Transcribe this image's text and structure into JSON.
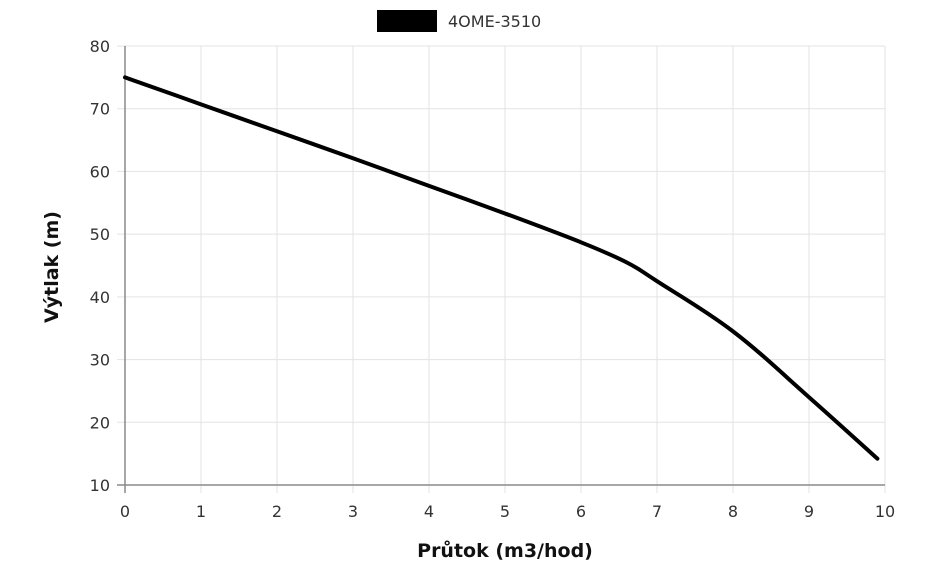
{
  "chart_data": {
    "type": "line",
    "xlabel": "Průtok (m3/hod)",
    "ylabel": "Výtlak (m)",
    "xlim": [
      0,
      10
    ],
    "ylim": [
      10,
      80
    ],
    "x_ticks": [
      0,
      1,
      2,
      3,
      4,
      5,
      6,
      7,
      8,
      9,
      10
    ],
    "y_ticks": [
      10,
      20,
      30,
      40,
      50,
      60,
      70,
      80
    ],
    "grid": true,
    "legend_position": "top-center",
    "series": [
      {
        "name": "4OME-3510",
        "color": "#000000",
        "x": [
          0,
          1,
          2,
          3,
          4,
          5,
          6,
          6.6,
          7,
          8,
          9,
          9.9
        ],
        "y": [
          75,
          70.7,
          66.4,
          62.1,
          57.7,
          53.3,
          48.7,
          45.5,
          42.5,
          34.5,
          24,
          14.2
        ]
      }
    ]
  }
}
